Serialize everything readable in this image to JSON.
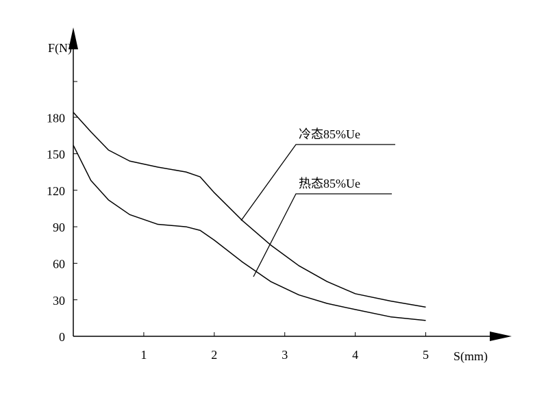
{
  "chart_data": {
    "type": "line",
    "y_label": "F(N)",
    "x_label": "S(mm)",
    "x": [
      0,
      0.25,
      0.5,
      0.8,
      1.2,
      1.6,
      1.8,
      2,
      2.4,
      2.8,
      3.2,
      3.6,
      4,
      4.5,
      5
    ],
    "series": [
      {
        "name": "冷态85%Ue",
        "color": "#000000",
        "values": [
          184,
          168,
          153,
          144,
          139,
          135,
          131,
          118,
          95,
          75,
          58,
          45,
          35,
          29,
          24
        ]
      },
      {
        "name": "热态85%Ue",
        "color": "#000000",
        "values": [
          157,
          128,
          112,
          100,
          92,
          90,
          87,
          79,
          61,
          45,
          34,
          27,
          22,
          16,
          13
        ]
      }
    ],
    "xlim": [
      0,
      6.2
    ],
    "xticks": [
      1,
      2,
      3,
      4,
      5
    ],
    "ylim": [
      0,
      251
    ],
    "yticks": [
      0,
      30,
      60,
      90,
      120,
      150,
      180
    ],
    "grid": false
  }
}
